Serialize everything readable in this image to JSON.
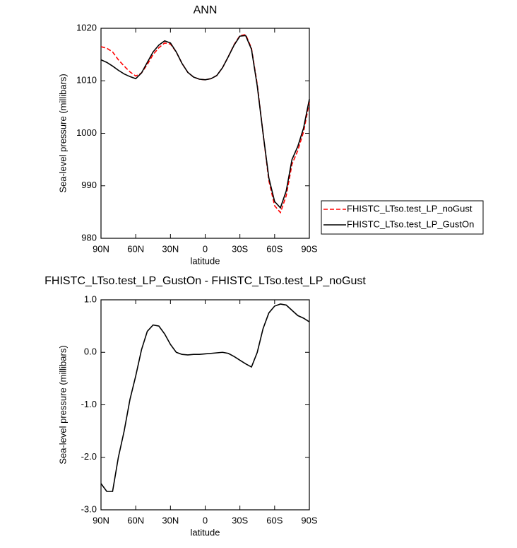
{
  "chart_data": [
    {
      "type": "line",
      "title": "ANN",
      "xlabel": "latitude",
      "ylabel": "Sea-level pressure (millibars)",
      "x": [
        90,
        85,
        80,
        75,
        70,
        65,
        60,
        55,
        50,
        45,
        40,
        35,
        30,
        25,
        20,
        15,
        10,
        5,
        0,
        -5,
        -10,
        -15,
        -20,
        -25,
        -30,
        -35,
        -40,
        -45,
        -50,
        -55,
        -60,
        -65,
        -70,
        -75,
        -80,
        -85,
        -90
      ],
      "xlim": [
        90,
        -90
      ],
      "xticks": [
        {
          "value": 90,
          "label": "90N"
        },
        {
          "value": 60,
          "label": "60N"
        },
        {
          "value": 30,
          "label": "30N"
        },
        0,
        {
          "value": -30,
          "label": "30S"
        },
        {
          "value": -60,
          "label": "60S"
        },
        {
          "value": -90,
          "label": "90S"
        }
      ],
      "ylim": [
        980,
        1020
      ],
      "yticks": [
        980,
        990,
        1000,
        1010,
        1020
      ],
      "legend": "right",
      "series": [
        {
          "name": "FHISTC_LTso.test_LP_noGust",
          "color": "#ff0000",
          "dashed": true,
          "values": [
            1016.5,
            1016.2,
            1015.5,
            1014.0,
            1012.8,
            1011.7,
            1010.9,
            1011.5,
            1013.1,
            1015.0,
            1016.3,
            1017.2,
            1017.0,
            1015.5,
            1013.3,
            1011.6,
            1010.7,
            1010.3,
            1010.2,
            1010.4,
            1011.0,
            1012.5,
            1014.6,
            1016.9,
            1018.6,
            1018.8,
            1016.2,
            1009.3,
            1000.0,
            991.0,
            986.2,
            984.9,
            988.1,
            994.1,
            996.7,
            1000.3,
            1005.9
          ]
        },
        {
          "name": "FHISTC_LTso.test_LP_GustOn",
          "color": "#000000",
          "dashed": false,
          "values": [
            1014.0,
            1013.5,
            1012.8,
            1012.0,
            1011.3,
            1010.8,
            1010.4,
            1011.5,
            1013.5,
            1015.5,
            1016.8,
            1017.6,
            1017.2,
            1015.5,
            1013.3,
            1011.6,
            1010.7,
            1010.3,
            1010.2,
            1010.4,
            1011.0,
            1012.5,
            1014.6,
            1016.8,
            1018.5,
            1018.6,
            1016.0,
            1009.0,
            1000.0,
            991.5,
            987.0,
            985.8,
            989.0,
            995.0,
            997.5,
            1001.0,
            1006.5
          ]
        }
      ]
    },
    {
      "type": "line",
      "title": "FHISTC_LTso.test_LP_GustOn - FHISTC_LTso.test_LP_noGust",
      "xlabel": "latitude",
      "ylabel": "Sea-level pressure (millibars)",
      "x": [
        90,
        85,
        80,
        75,
        70,
        65,
        60,
        55,
        50,
        45,
        40,
        35,
        30,
        25,
        20,
        15,
        10,
        5,
        0,
        -5,
        -10,
        -15,
        -20,
        -25,
        -30,
        -35,
        -40,
        -45,
        -50,
        -55,
        -60,
        -65,
        -70,
        -75,
        -80,
        -85,
        -90
      ],
      "xlim": [
        90,
        -90
      ],
      "xticks": [
        {
          "value": 90,
          "label": "90N"
        },
        {
          "value": 60,
          "label": "60N"
        },
        {
          "value": 30,
          "label": "30N"
        },
        0,
        {
          "value": -30,
          "label": "30S"
        },
        {
          "value": -60,
          "label": "60S"
        },
        {
          "value": -90,
          "label": "90S"
        }
      ],
      "ylim": [
        -3,
        1
      ],
      "yticks": [
        {
          "value": -3,
          "label": "-3.0"
        },
        {
          "value": -2,
          "label": "-2.0"
        },
        {
          "value": -1,
          "label": "-1.0"
        },
        {
          "value": 0,
          "label": "0.0"
        },
        {
          "value": 1,
          "label": "1.0"
        }
      ],
      "series": [
        {
          "color": "#000000",
          "dashed": false,
          "values": [
            -2.5,
            -2.65,
            -2.65,
            -2.0,
            -1.5,
            -0.9,
            -0.45,
            0.05,
            0.4,
            0.52,
            0.5,
            0.35,
            0.15,
            0.0,
            -0.04,
            -0.05,
            -0.04,
            -0.04,
            -0.03,
            -0.02,
            -0.01,
            0.0,
            -0.02,
            -0.08,
            -0.15,
            -0.22,
            -0.28,
            0.0,
            0.45,
            0.75,
            0.88,
            0.92,
            0.9,
            0.8,
            0.7,
            0.65,
            0.58
          ]
        }
      ]
    }
  ]
}
